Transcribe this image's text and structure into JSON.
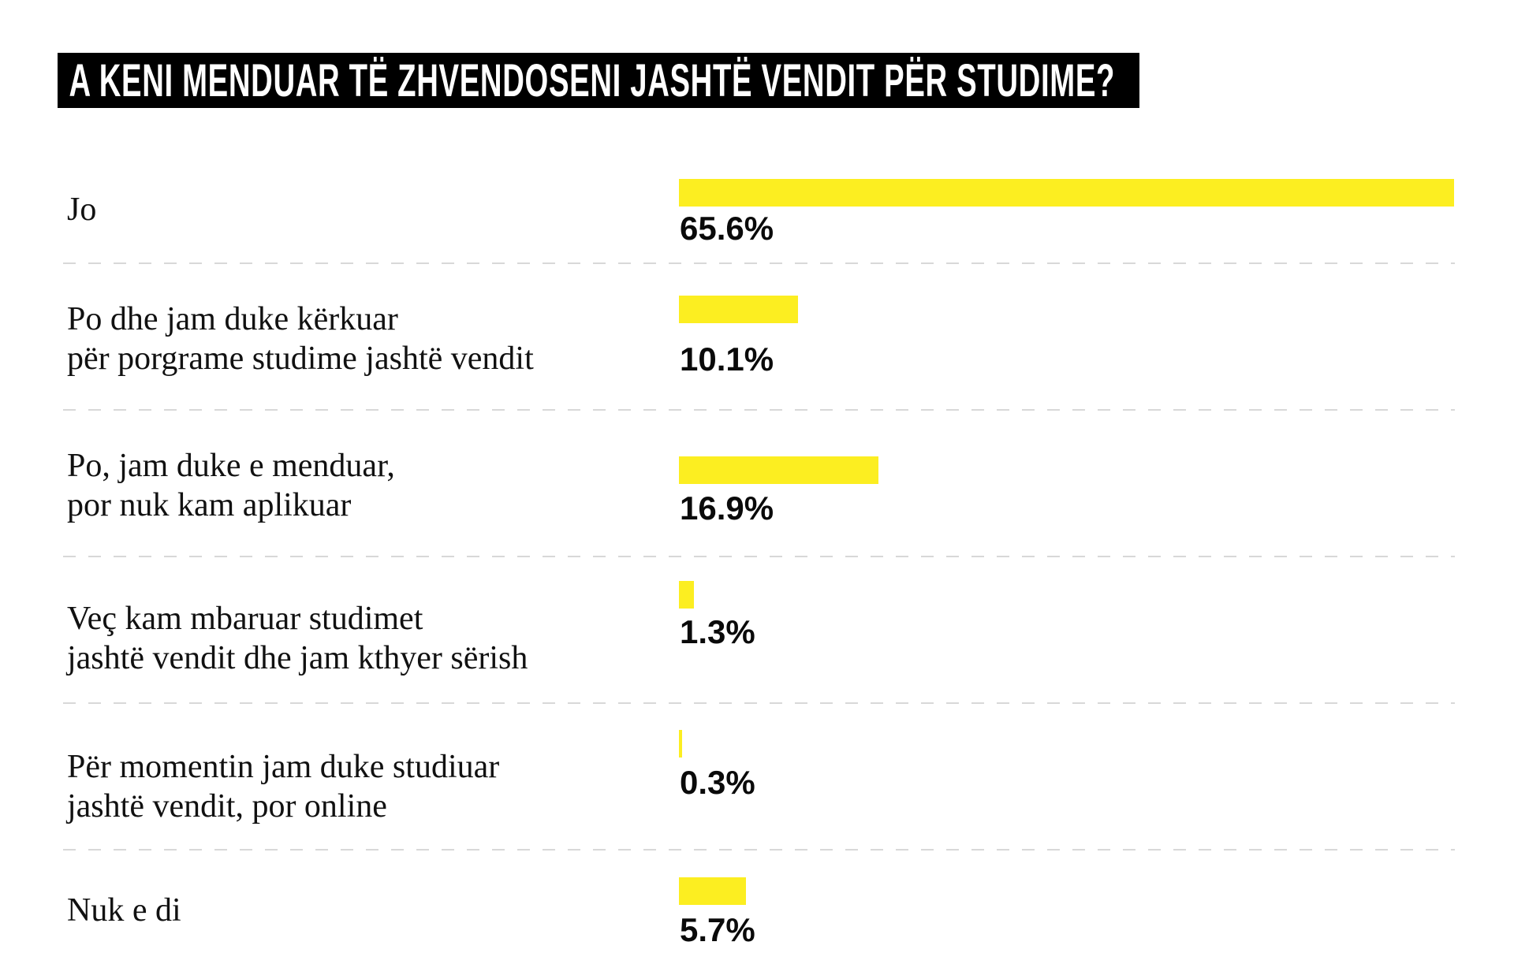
{
  "chart_data": {
    "type": "bar",
    "orientation": "horizontal",
    "title": "A KENI MENDUAR TË ZHVENDOSENI JASHTË VENDIT PËR STUDIME?",
    "categories": [
      "Jo",
      "Po dhe jam duke kërkuar për porgrame studime jashtë vendit",
      "Po, jam duke e menduar, por nuk kam aplikuar",
      "Veç kam mbaruar studimet jashtë vendit dhe jam kthyer sërish",
      "Për momentin jam duke studiuar jashtë vendit, por online",
      "Nuk e di"
    ],
    "values": [
      65.6,
      10.1,
      16.9,
      1.3,
      0.3,
      5.7
    ],
    "rows": [
      {
        "label_lines": [
          "Jo"
        ],
        "value": 65.6,
        "value_label": "65.6%"
      },
      {
        "label_lines": [
          "Po dhe jam duke kërkuar",
          "për porgrame studime jashtë vendit"
        ],
        "value": 10.1,
        "value_label": "10.1%"
      },
      {
        "label_lines": [
          "Po, jam duke e menduar,",
          "por nuk kam aplikuar"
        ],
        "value": 16.9,
        "value_label": "16.9%"
      },
      {
        "label_lines": [
          "Veç kam mbaruar studimet",
          "jashtë vendit dhe jam kthyer sërish"
        ],
        "value": 1.3,
        "value_label": "1.3%"
      },
      {
        "label_lines": [
          "Për momentin jam duke studiuar",
          "jashtë vendit, por online"
        ],
        "value": 0.3,
        "value_label": "0.3%"
      },
      {
        "label_lines": [
          "Nuk e di"
        ],
        "value": 5.7,
        "value_label": "5.7%"
      }
    ],
    "xlim": [
      0,
      100
    ],
    "grid": "dashed-row-separators",
    "legend": "none",
    "bar_color": "#FCEE21",
    "title_bg_color": "#000000",
    "title_text_color": "#FFFFFF",
    "separator_color": "#D8D8D8"
  }
}
